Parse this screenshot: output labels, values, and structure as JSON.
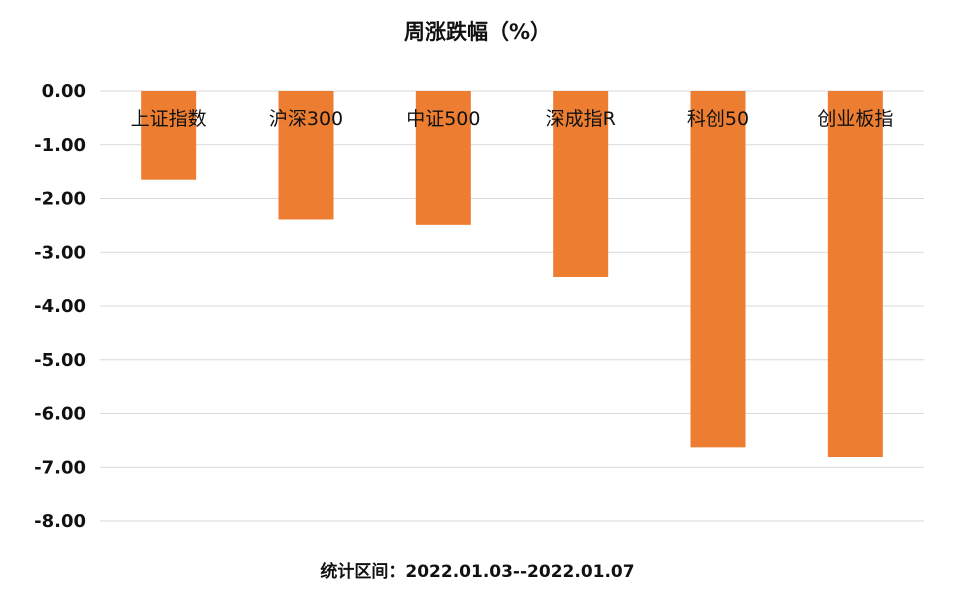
{
  "chart_data": {
    "type": "bar",
    "title": "周涨跌幅（%）",
    "categories": [
      "上证指数",
      "沪深300",
      "中证500",
      "深成指R",
      "科创50",
      "创业板指"
    ],
    "values": [
      -1.65,
      -2.39,
      -2.49,
      -3.46,
      -6.63,
      -6.81
    ],
    "ylim": [
      -8,
      0
    ],
    "yticks": [
      "0.00",
      "-1.00",
      "-2.00",
      "-3.00",
      "-4.00",
      "-5.00",
      "-6.00",
      "-7.00",
      "-8.00"
    ],
    "xlabel": "",
    "ylabel": "",
    "grid": true,
    "colors": {
      "bar": "#ED7D31"
    },
    "footer": "统计区间：2022.01.03--2022.01.07"
  }
}
